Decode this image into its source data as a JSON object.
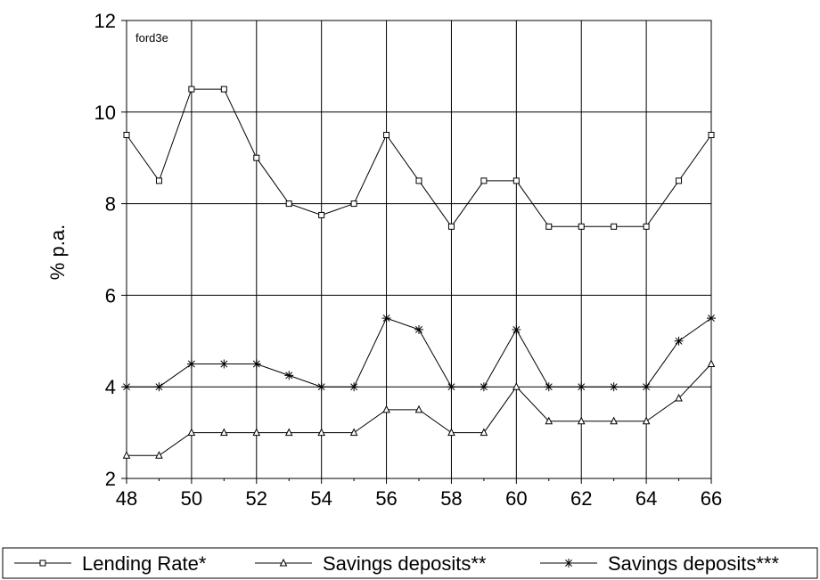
{
  "chart_data": {
    "type": "line",
    "annotation": "ford3e",
    "ylabel": "% p.a.",
    "xlabel": "",
    "xlim": [
      48,
      66
    ],
    "ylim": [
      2,
      12
    ],
    "x_ticks": [
      "48",
      "50",
      "52",
      "54",
      "56",
      "58",
      "60",
      "62",
      "64",
      "66"
    ],
    "y_ticks": [
      "2",
      "4",
      "6",
      "8",
      "10",
      "12"
    ],
    "grid": true,
    "legend_position": "bottom",
    "x": [
      48,
      49,
      50,
      51,
      52,
      53,
      54,
      55,
      56,
      57,
      58,
      59,
      60,
      61,
      62,
      63,
      64,
      65,
      66
    ],
    "series": [
      {
        "name": "Lending Rate*",
        "marker": "square",
        "values": [
          9.5,
          8.5,
          10.5,
          10.5,
          9.0,
          8.0,
          7.75,
          8.0,
          9.5,
          8.5,
          7.5,
          8.5,
          8.5,
          7.5,
          7.5,
          7.5,
          7.5,
          8.5,
          9.5
        ]
      },
      {
        "name": "Savings deposits**",
        "marker": "triangle",
        "values": [
          2.5,
          2.5,
          3.0,
          3.0,
          3.0,
          3.0,
          3.0,
          3.0,
          3.5,
          3.5,
          3.0,
          3.0,
          4.0,
          3.25,
          3.25,
          3.25,
          3.25,
          3.75,
          4.5
        ]
      },
      {
        "name": "Savings deposits***",
        "marker": "star",
        "values": [
          4.0,
          4.0,
          4.5,
          4.5,
          4.5,
          4.25,
          4.0,
          4.0,
          5.5,
          5.25,
          4.0,
          4.0,
          5.25,
          4.0,
          4.0,
          4.0,
          4.0,
          5.0,
          5.5
        ]
      }
    ]
  }
}
